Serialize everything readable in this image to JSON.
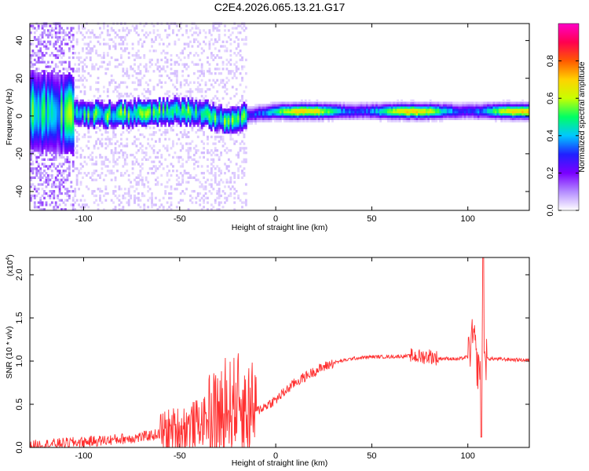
{
  "title": "C2E4.2026.065.13.21.G17",
  "chart_data": [
    {
      "type": "heatmap",
      "xlabel": "Height of straight line (km)",
      "ylabel": "Frequency (Hz)",
      "xlim": [
        -128,
        132
      ],
      "ylim": [
        -50,
        49
      ],
      "xticks": [
        -100,
        -50,
        0,
        50,
        100
      ],
      "yticks": [
        -40,
        -20,
        0,
        20,
        40
      ],
      "colorbar": {
        "label": "Normalized spectral amplitude",
        "range": [
          0,
          1
        ],
        "ticks": [
          "0.0",
          "0.2",
          "0.4",
          "0.6",
          "0.8"
        ],
        "colors": [
          "#ffffff",
          "#b48cff",
          "#7a00ff",
          "#2020ff",
          "#00c8ff",
          "#00ff64",
          "#c8ff00",
          "#ffd200",
          "#ff5a00",
          "#ff0050",
          "#ff00c8"
        ]
      },
      "ridge": {
        "x": [
          -128,
          -110,
          -90,
          -70,
          -55,
          -40,
          -25,
          -15,
          0,
          50,
          100,
          132
        ],
        "y": [
          2,
          1,
          0,
          1,
          2,
          1,
          -3,
          0,
          2,
          2,
          2,
          2
        ]
      }
    },
    {
      "type": "line",
      "xlabel": "Height of straight line (km)",
      "ylabel": "SNR (10 * v/v)",
      "y_multiplier": "(x10",
      "y_multiplier_exp": "4",
      "y_multiplier_close": ")",
      "xlim": [
        -128,
        132
      ],
      "ylim": [
        0,
        2.2
      ],
      "xticks": [
        -100,
        -50,
        0,
        50,
        100
      ],
      "yticks": [
        "0.0",
        "0.5",
        "1.0",
        "1.5",
        "2.0"
      ],
      "line_color": "#ff3030",
      "series": [
        {
          "x": [
            -128,
            -110,
            -90,
            -70,
            -55,
            -45,
            -35,
            -25,
            -20,
            -15,
            -10,
            0,
            10,
            20,
            30,
            40,
            50,
            60,
            70,
            75,
            80,
            85,
            90,
            95,
            100,
            103,
            105,
            107,
            108,
            109,
            110,
            120,
            132
          ],
          "y": [
            0.02,
            0.05,
            0.08,
            0.12,
            0.18,
            0.25,
            0.32,
            0.45,
            0.55,
            0.45,
            0.42,
            0.55,
            0.75,
            0.88,
            0.98,
            1.03,
            1.05,
            1.05,
            1.06,
            1.05,
            1.06,
            1.03,
            1.03,
            1.02,
            1.05,
            1.3,
            0.9,
            1.0,
            1.55,
            1.0,
            1.03,
            1.02,
            1.01
          ]
        }
      ]
    }
  ]
}
